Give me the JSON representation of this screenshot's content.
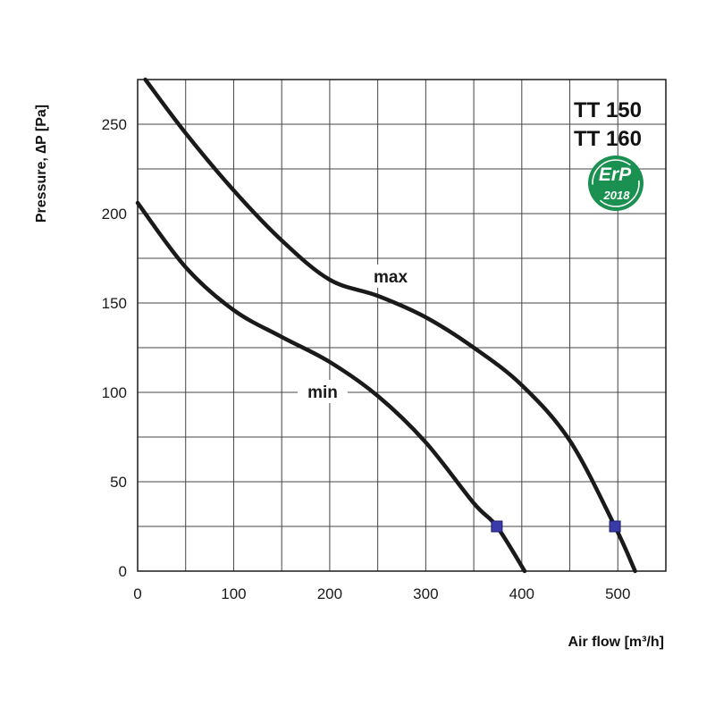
{
  "chart_data": {
    "type": "line",
    "title": "",
    "xlabel": "Air flow [m³/h]",
    "ylabel": "Pressure, ∆P [Pa]",
    "xlim": [
      0,
      550
    ],
    "ylim": [
      0,
      275
    ],
    "x_ticks": [
      0,
      100,
      200,
      300,
      400,
      500
    ],
    "y_ticks": [
      0,
      50,
      100,
      150,
      200,
      250
    ],
    "x_grid_step": 50,
    "y_grid_step": 25,
    "grid": true,
    "series": [
      {
        "name": "max",
        "points": [
          [
            8,
            275
          ],
          [
            50,
            245
          ],
          [
            100,
            213
          ],
          [
            150,
            185
          ],
          [
            200,
            163
          ],
          [
            250,
            154
          ],
          [
            300,
            142
          ],
          [
            350,
            125
          ],
          [
            400,
            104
          ],
          [
            450,
            73
          ],
          [
            497,
            25
          ],
          [
            518,
            0
          ]
        ]
      },
      {
        "name": "min",
        "points": [
          [
            0,
            206
          ],
          [
            50,
            170
          ],
          [
            100,
            146
          ],
          [
            150,
            131
          ],
          [
            200,
            117
          ],
          [
            250,
            98
          ],
          [
            300,
            72
          ],
          [
            350,
            38
          ],
          [
            374,
            25
          ],
          [
            403,
            0
          ]
        ]
      }
    ],
    "markers": [
      [
        374,
        25
      ],
      [
        497,
        25
      ]
    ],
    "models": [
      "TT 150",
      "TT 160"
    ],
    "badge": {
      "line1": "ErP",
      "line2": "2018",
      "color": "#1a9150"
    }
  }
}
